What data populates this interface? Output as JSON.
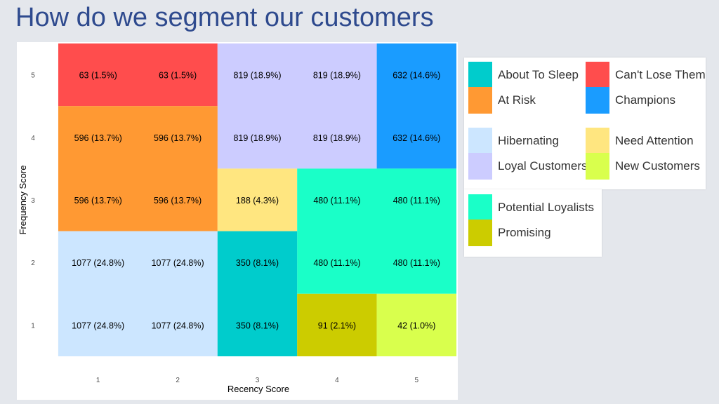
{
  "title": "How do we segment our customers",
  "chart_data": {
    "type": "heatmap",
    "xlabel": "Recency Score",
    "ylabel": "Frequency Score",
    "x_ticks": [
      "1",
      "2",
      "3",
      "4",
      "5"
    ],
    "y_ticks": [
      "1",
      "2",
      "3",
      "4",
      "5"
    ],
    "xlim": [
      0.5,
      5.5
    ],
    "ylim": [
      0.5,
      5.5
    ],
    "segments": [
      {
        "name": "About To Sleep",
        "color": "#00cccc"
      },
      {
        "name": "Can't Lose Them",
        "color": "#ff4d4d"
      },
      {
        "name": "At Risk",
        "color": "#ff9933"
      },
      {
        "name": "Champions",
        "color": "#1a9cff"
      },
      {
        "name": "Hibernating",
        "color": "#cce6ff"
      },
      {
        "name": "Need Attention",
        "color": "#ffe680"
      },
      {
        "name": "Loyal Customers",
        "color": "#ccccff"
      },
      {
        "name": "New Customers",
        "color": "#d9ff4d"
      },
      {
        "name": "Potential Loyalists",
        "color": "#1affc8"
      },
      {
        "name": "Promising",
        "color": "#cccc00"
      }
    ],
    "blocks": [
      {
        "segment": "Can't Lose Them",
        "x": [
          1,
          2
        ],
        "y": [
          5,
          5
        ]
      },
      {
        "segment": "Loyal Customers",
        "x": [
          3,
          4
        ],
        "y": [
          4,
          5
        ]
      },
      {
        "segment": "Champions",
        "x": [
          5,
          5
        ],
        "y": [
          4,
          5
        ]
      },
      {
        "segment": "At Risk",
        "x": [
          1,
          2
        ],
        "y": [
          3,
          4
        ]
      },
      {
        "segment": "Need Attention",
        "x": [
          3,
          3
        ],
        "y": [
          3,
          3
        ]
      },
      {
        "segment": "Potential Loyalists",
        "x": [
          4,
          5
        ],
        "y": [
          2,
          3
        ]
      },
      {
        "segment": "Hibernating",
        "x": [
          1,
          2
        ],
        "y": [
          1,
          2
        ]
      },
      {
        "segment": "About To Sleep",
        "x": [
          3,
          3
        ],
        "y": [
          1,
          2
        ]
      },
      {
        "segment": "Promising",
        "x": [
          4,
          4
        ],
        "y": [
          1,
          1
        ]
      },
      {
        "segment": "New Customers",
        "x": [
          5,
          5
        ],
        "y": [
          1,
          1
        ]
      }
    ],
    "cells": [
      {
        "x": 1,
        "y": 5,
        "label": "63 (1.5%)"
      },
      {
        "x": 2,
        "y": 5,
        "label": "63 (1.5%)"
      },
      {
        "x": 3,
        "y": 5,
        "label": "819 (18.9%)"
      },
      {
        "x": 4,
        "y": 5,
        "label": "819 (18.9%)"
      },
      {
        "x": 5,
        "y": 5,
        "label": "632 (14.6%)"
      },
      {
        "x": 1,
        "y": 4,
        "label": "596 (13.7%)"
      },
      {
        "x": 2,
        "y": 4,
        "label": "596 (13.7%)"
      },
      {
        "x": 3,
        "y": 4,
        "label": "819 (18.9%)"
      },
      {
        "x": 4,
        "y": 4,
        "label": "819 (18.9%)"
      },
      {
        "x": 5,
        "y": 4,
        "label": "632 (14.6%)"
      },
      {
        "x": 1,
        "y": 3,
        "label": "596 (13.7%)"
      },
      {
        "x": 2,
        "y": 3,
        "label": "596 (13.7%)"
      },
      {
        "x": 3,
        "y": 3,
        "label": "188 (4.3%)"
      },
      {
        "x": 4,
        "y": 3,
        "label": "480 (11.1%)"
      },
      {
        "x": 5,
        "y": 3,
        "label": "480 (11.1%)"
      },
      {
        "x": 1,
        "y": 2,
        "label": "1077 (24.8%)"
      },
      {
        "x": 2,
        "y": 2,
        "label": "1077 (24.8%)"
      },
      {
        "x": 3,
        "y": 2,
        "label": "350 (8.1%)"
      },
      {
        "x": 4,
        "y": 2,
        "label": "480 (11.1%)"
      },
      {
        "x": 5,
        "y": 2,
        "label": "480 (11.1%)"
      },
      {
        "x": 1,
        "y": 1,
        "label": "1077 (24.8%)"
      },
      {
        "x": 2,
        "y": 1,
        "label": "1077 (24.8%)"
      },
      {
        "x": 3,
        "y": 1,
        "label": "350 (8.1%)"
      },
      {
        "x": 4,
        "y": 1,
        "label": "91 (2.1%)"
      },
      {
        "x": 5,
        "y": 1,
        "label": "42 (1.0%)"
      }
    ]
  }
}
